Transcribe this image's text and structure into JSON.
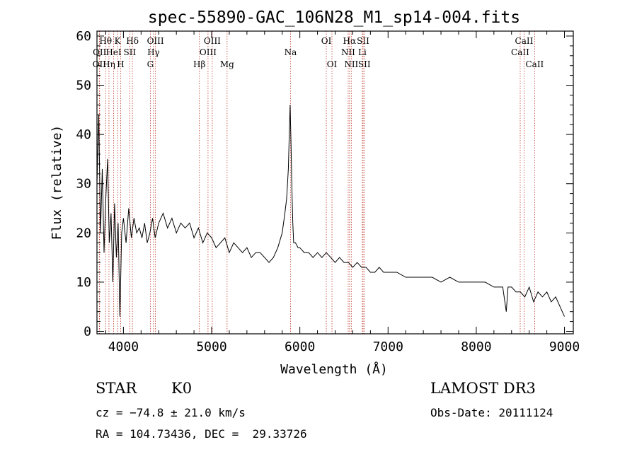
{
  "chart_data": {
    "type": "line",
    "title": "spec-55890-GAC_106N28_M1_sp14-004.fits",
    "xlabel": "Wavelength (Å)",
    "ylabel": "Flux (relative)",
    "xlim": [
      3700,
      9100
    ],
    "ylim": [
      -0.5,
      61
    ],
    "xticks": [
      4000,
      5000,
      6000,
      7000,
      8000,
      9000
    ],
    "yticks": [
      0,
      10,
      20,
      30,
      40,
      50,
      60
    ],
    "series": [
      {
        "name": "flux",
        "x": [
          3700,
          3720,
          3740,
          3760,
          3780,
          3800,
          3820,
          3840,
          3860,
          3880,
          3900,
          3920,
          3940,
          3960,
          3980,
          4000,
          4030,
          4060,
          4090,
          4120,
          4150,
          4180,
          4210,
          4240,
          4270,
          4300,
          4330,
          4360,
          4400,
          4450,
          4500,
          4550,
          4600,
          4650,
          4700,
          4750,
          4800,
          4850,
          4900,
          4950,
          5000,
          5050,
          5100,
          5150,
          5200,
          5250,
          5300,
          5350,
          5400,
          5450,
          5500,
          5550,
          5600,
          5650,
          5700,
          5750,
          5800,
          5830,
          5850,
          5870,
          5880,
          5890,
          5900,
          5910,
          5920,
          5930,
          5950,
          5980,
          6000,
          6050,
          6100,
          6150,
          6200,
          6250,
          6300,
          6350,
          6400,
          6450,
          6500,
          6550,
          6600,
          6650,
          6700,
          6750,
          6800,
          6850,
          6900,
          6950,
          7000,
          7100,
          7200,
          7300,
          7400,
          7500,
          7600,
          7700,
          7800,
          7900,
          8000,
          8100,
          8200,
          8300,
          8340,
          8360,
          8400,
          8450,
          8500,
          8550,
          8600,
          8650,
          8700,
          8750,
          8800,
          8850,
          8900,
          8950,
          9000
        ],
        "y": [
          30,
          44,
          20,
          33,
          16,
          27,
          35,
          18,
          24,
          10,
          26,
          15,
          22,
          3,
          20,
          23,
          18,
          25,
          19,
          23,
          20,
          21,
          19,
          22,
          18,
          20,
          23,
          19,
          22,
          24,
          21,
          23,
          20,
          22,
          21,
          22,
          19,
          21,
          18,
          20,
          19,
          17,
          18,
          19,
          16,
          18,
          17,
          16,
          17,
          15,
          16,
          16,
          15,
          14,
          15,
          17,
          20,
          24,
          27,
          33,
          40,
          46,
          38,
          29,
          22,
          18,
          18,
          17,
          17,
          16,
          16,
          15,
          16,
          15,
          16,
          15,
          14,
          15,
          14,
          14,
          13,
          14,
          13,
          13,
          12,
          12,
          13,
          12,
          12,
          12,
          11,
          11,
          11,
          11,
          10,
          11,
          10,
          10,
          10,
          10,
          9,
          9,
          4,
          9,
          9,
          8,
          8,
          7,
          9,
          6,
          8,
          7,
          8,
          6,
          7,
          5,
          3
        ]
      }
    ],
    "lines": [
      {
        "name": "OII",
        "wl": 3727,
        "row": 3
      },
      {
        "name": "OII",
        "wl": 3730,
        "row": 2
      },
      {
        "name": "Hθ",
        "wl": 3798,
        "row": 1
      },
      {
        "name": "Hη",
        "wl": 3836,
        "row": 3
      },
      {
        "name": "HeI",
        "wl": 3889,
        "row": 2
      },
      {
        "name": "K",
        "wl": 3934,
        "row": 1
      },
      {
        "name": "H",
        "wl": 3969,
        "row": 3
      },
      {
        "name": "SII",
        "wl": 4072,
        "row": 2
      },
      {
        "name": "Hδ",
        "wl": 4102,
        "row": 1
      },
      {
        "name": "G",
        "wl": 4305,
        "row": 3
      },
      {
        "name": "Hγ",
        "wl": 4341,
        "row": 2
      },
      {
        "name": "OIII",
        "wl": 4363,
        "row": 1
      },
      {
        "name": "Hβ",
        "wl": 4861,
        "row": 3
      },
      {
        "name": "OIII",
        "wl": 4959,
        "row": 2
      },
      {
        "name": "OIII",
        "wl": 5007,
        "row": 1
      },
      {
        "name": "Mg",
        "wl": 5175,
        "row": 3
      },
      {
        "name": "Na",
        "wl": 5894,
        "row": 2
      },
      {
        "name": "OI",
        "wl": 6300,
        "row": 1
      },
      {
        "name": "OI",
        "wl": 6364,
        "row": 3
      },
      {
        "name": "NII",
        "wl": 6548,
        "row": 2
      },
      {
        "name": "Hα",
        "wl": 6563,
        "row": 1
      },
      {
        "name": "NII",
        "wl": 6583,
        "row": 3
      },
      {
        "name": "Li",
        "wl": 6708,
        "row": 2
      },
      {
        "name": "SII",
        "wl": 6717,
        "row": 1
      },
      {
        "name": "SII",
        "wl": 6731,
        "row": 3
      },
      {
        "name": "CaII",
        "wl": 8498,
        "row": 2
      },
      {
        "name": "CaII",
        "wl": 8542,
        "row": 1
      },
      {
        "name": "CaII",
        "wl": 8662,
        "row": 3
      }
    ]
  },
  "info": {
    "class": "STAR",
    "subclass": "K0",
    "survey": "LAMOST DR3",
    "cz": "cz = −74.8 ± 21.0 km/s",
    "obs_date": "Obs-Date: 20111124",
    "coords": "RA = 104.73436, DEC =  29.33726"
  },
  "colors": {
    "line_marker": "#c0392b",
    "spectrum": "#000000"
  }
}
